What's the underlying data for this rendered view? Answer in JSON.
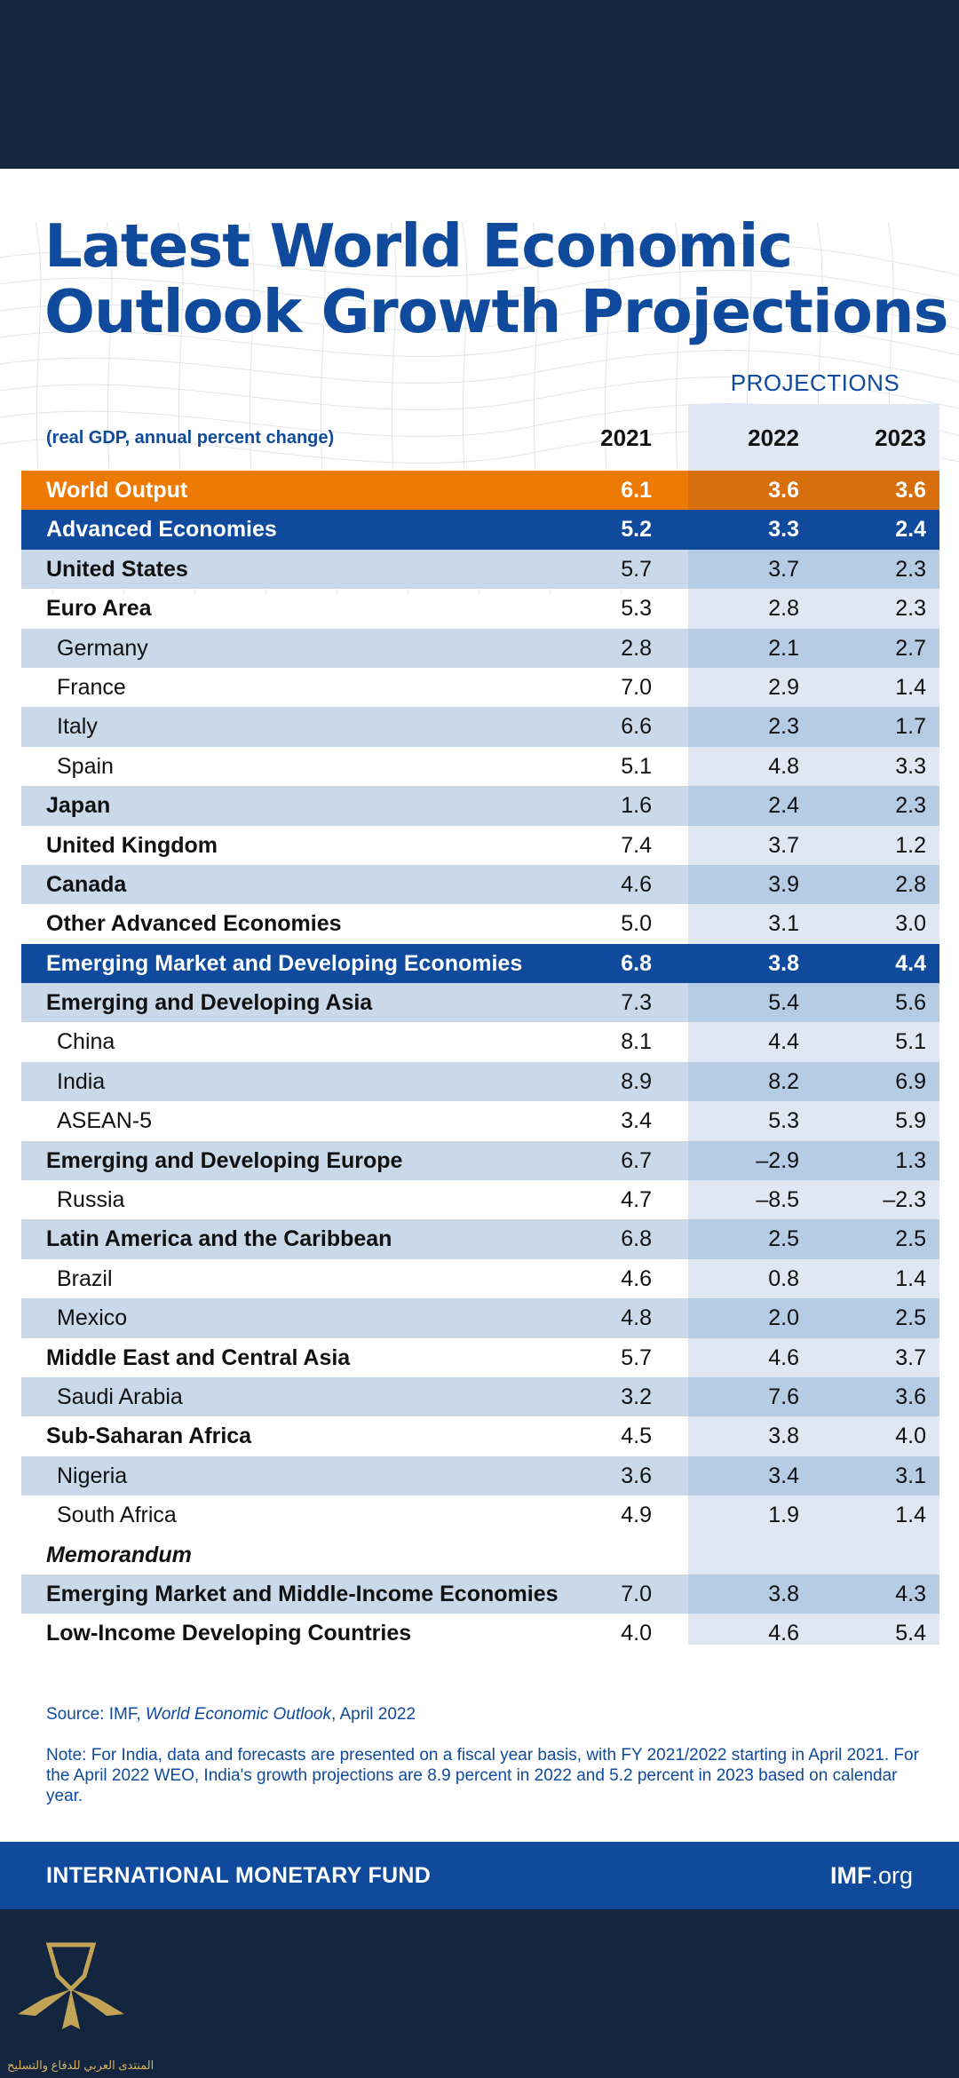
{
  "header": {
    "title_line1": "Latest World Economic",
    "title_line2": "Outlook Growth Projections",
    "projections_label": "PROJECTIONS",
    "subtitle": "(real GDP, annual percent change)",
    "years": [
      "2021",
      "2022",
      "2023"
    ]
  },
  "rows": [
    {
      "name": "World Output",
      "v": [
        "6.1",
        "3.6",
        "3.6"
      ]
    },
    {
      "name": "Advanced Economies",
      "v": [
        "5.2",
        "3.3",
        "2.4"
      ]
    },
    {
      "name": "United States",
      "v": [
        "5.7",
        "3.7",
        "2.3"
      ]
    },
    {
      "name": "Euro Area",
      "v": [
        "5.3",
        "2.8",
        "2.3"
      ]
    },
    {
      "name": "Germany",
      "v": [
        "2.8",
        "2.1",
        "2.7"
      ]
    },
    {
      "name": "France",
      "v": [
        "7.0",
        "2.9",
        "1.4"
      ]
    },
    {
      "name": "Italy",
      "v": [
        "6.6",
        "2.3",
        "1.7"
      ]
    },
    {
      "name": "Spain",
      "v": [
        "5.1",
        "4.8",
        "3.3"
      ]
    },
    {
      "name": "Japan",
      "v": [
        "1.6",
        "2.4",
        "2.3"
      ]
    },
    {
      "name": "United Kingdom",
      "v": [
        "7.4",
        "3.7",
        "1.2"
      ]
    },
    {
      "name": "Canada",
      "v": [
        "4.6",
        "3.9",
        "2.8"
      ]
    },
    {
      "name": "Other Advanced Economies",
      "v": [
        "5.0",
        "3.1",
        "3.0"
      ]
    },
    {
      "name": "Emerging Market and Developing Economies",
      "v": [
        "6.8",
        "3.8",
        "4.4"
      ]
    },
    {
      "name": "Emerging and Developing Asia",
      "v": [
        "7.3",
        "5.4",
        "5.6"
      ]
    },
    {
      "name": "China",
      "v": [
        "8.1",
        "4.4",
        "5.1"
      ]
    },
    {
      "name": "India",
      "v": [
        "8.9",
        "8.2",
        "6.9"
      ]
    },
    {
      "name": "ASEAN-5",
      "v": [
        "3.4",
        "5.3",
        "5.9"
      ]
    },
    {
      "name": "Emerging and Developing Europe",
      "v": [
        "6.7",
        "–2.9",
        "1.3"
      ]
    },
    {
      "name": "Russia",
      "v": [
        "4.7",
        "–8.5",
        "–2.3"
      ]
    },
    {
      "name": "Latin America and the Caribbean",
      "v": [
        "6.8",
        "2.5",
        "2.5"
      ]
    },
    {
      "name": "Brazil",
      "v": [
        "4.6",
        "0.8",
        "1.4"
      ]
    },
    {
      "name": "Mexico",
      "v": [
        "4.8",
        "2.0",
        "2.5"
      ]
    },
    {
      "name": "Middle East and Central Asia",
      "v": [
        "5.7",
        "4.6",
        "3.7"
      ]
    },
    {
      "name": "Saudi Arabia",
      "v": [
        "3.2",
        "7.6",
        "3.6"
      ]
    },
    {
      "name": "Sub-Saharan Africa",
      "v": [
        "4.5",
        "3.8",
        "4.0"
      ]
    },
    {
      "name": "Nigeria",
      "v": [
        "3.6",
        "3.4",
        "3.1"
      ]
    },
    {
      "name": "South Africa",
      "v": [
        "4.9",
        "1.9",
        "1.4"
      ]
    },
    {
      "name": "Memorandum",
      "v": [
        "",
        "",
        ""
      ]
    },
    {
      "name": "Emerging Market and Middle-Income Economies",
      "v": [
        "7.0",
        "3.8",
        "4.3"
      ]
    },
    {
      "name": "Low-Income Developing Countries",
      "v": [
        "4.0",
        "4.6",
        "5.4"
      ]
    }
  ],
  "source": {
    "prefix": "Source: IMF, ",
    "publication": "World Economic Outlook",
    "suffix": ", April 2022"
  },
  "note": "Note: For India, data and forecasts are presented on a fiscal year basis, with FY 2021/2022 starting in April 2021. For the April 2022 WEO, India's growth projections are 8.9 percent in 2022 and 5.2 percent in 2023 based on calendar year.",
  "footer": {
    "organization": "INTERNATIONAL MONETARY FUND",
    "site_bold": "IMF",
    "site_rest": ".org"
  },
  "watermark": {
    "text": "المنتدى العربي للدفاع والتسليح"
  },
  "colors": {
    "navy": "#13253f",
    "imf_blue": "#0f4a9c",
    "orange": "#ee7a06",
    "row_shade": "#cad9ea",
    "projection_shade": "#b6cbe4"
  }
}
